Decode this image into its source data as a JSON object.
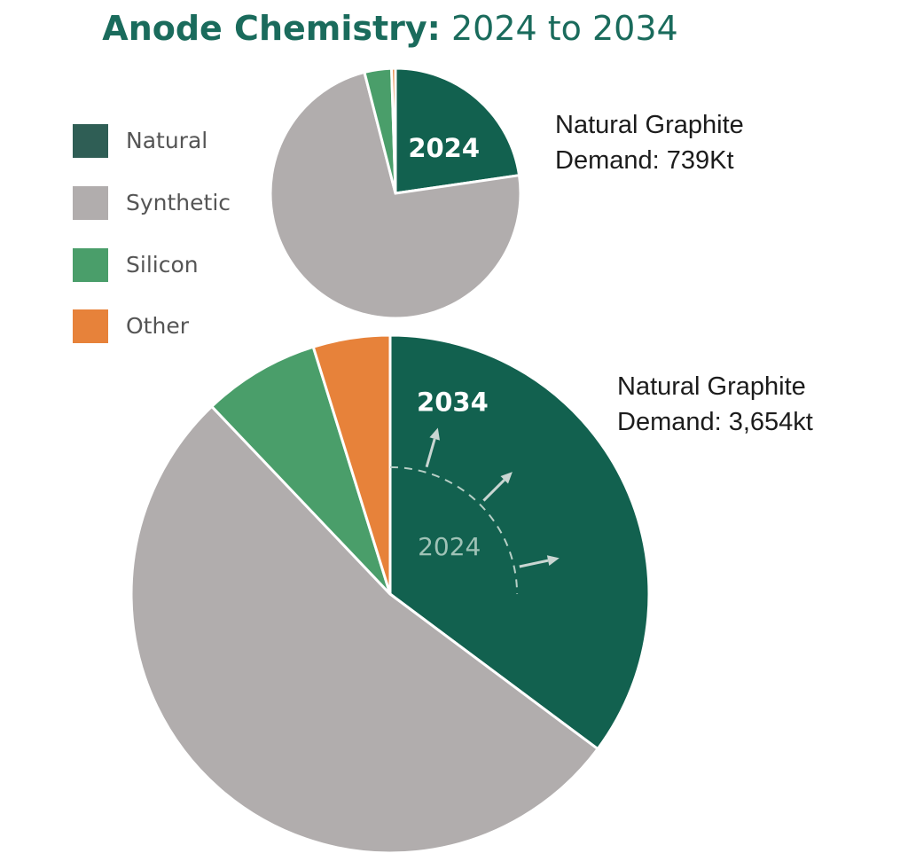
{
  "chart_data": [
    {
      "type": "pie",
      "year_label": "2024",
      "categories": [
        "Natural",
        "Synthetic",
        "Silicon",
        "Other"
      ],
      "values": [
        22.7,
        73.3,
        3.5,
        0.5
      ],
      "colors": [
        "#12614f",
        "#b1adad",
        "#4a9e6a",
        "#e7823a"
      ]
    },
    {
      "type": "pie",
      "year_label": "2034",
      "categories": [
        "Natural",
        "Synthetic",
        "Silicon",
        "Other"
      ],
      "values": [
        35.2,
        52.7,
        7.3,
        4.8
      ],
      "colors": [
        "#12614f",
        "#b1adad",
        "#4a9e6a",
        "#e7823a"
      ],
      "inner_reference_label": "2024"
    }
  ],
  "title": {
    "bold": "Anode Chemistry:",
    "rest": "2024 to 2034"
  },
  "legend": [
    {
      "label": "Natural",
      "color": "#2f5e55"
    },
    {
      "label": "Synthetic",
      "color": "#b1adad"
    },
    {
      "label": "Silicon",
      "color": "#4a9e6a"
    },
    {
      "label": "Other",
      "color": "#e7823a"
    }
  ],
  "annotations": {
    "a2024": {
      "line1": "Natural Graphite",
      "line2": "Demand: 739Kt"
    },
    "a2034": {
      "line1": "Natural Graphite",
      "line2": "Demand: 3,654kt"
    }
  }
}
